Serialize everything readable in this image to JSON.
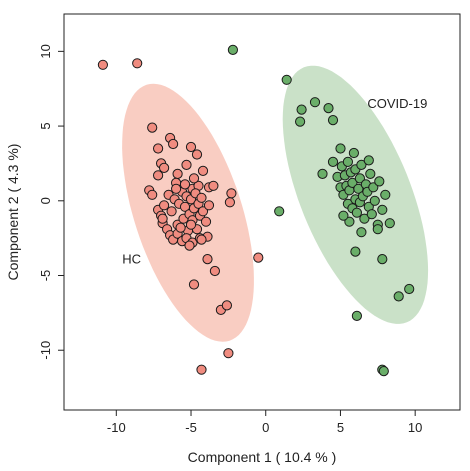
{
  "chart_data": {
    "type": "scatter",
    "title": "",
    "xlabel": "Component 1 ( 10.4 % )",
    "ylabel": "Component 2 ( 4.3 %)",
    "xlim": [
      -13.5,
      13.0
    ],
    "ylim": [
      -14.0,
      12.5
    ],
    "xticks": [
      -10,
      -5,
      0,
      5,
      10
    ],
    "yticks": [
      -10,
      -5,
      0,
      5,
      10
    ],
    "grid": false,
    "annotations": [
      {
        "text": "HC",
        "x": -9.6,
        "y": -4.2
      },
      {
        "text": "COVID-19",
        "x": 6.8,
        "y": 6.2
      }
    ],
    "ellipses": [
      {
        "group": "HC",
        "center": [
          -5.2,
          -0.8
        ],
        "semi_major": 9.0,
        "semi_minor": 3.6,
        "angle_deg": 108,
        "color": "#f4a48f"
      },
      {
        "group": "COVID-19",
        "center": [
          6.0,
          0.4
        ],
        "semi_major": 9.2,
        "semi_minor": 3.7,
        "angle_deg": 112,
        "color": "#9ec99b"
      }
    ],
    "series": [
      {
        "name": "HC",
        "color": "#f08c80",
        "points": [
          [
            -10.9,
            9.1
          ],
          [
            -8.6,
            9.2
          ],
          [
            -7.6,
            4.9
          ],
          [
            -7.8,
            0.7
          ],
          [
            -7.6,
            0.4
          ],
          [
            -7.2,
            3.5
          ],
          [
            -7.0,
            2.5
          ],
          [
            -6.8,
            2.2
          ],
          [
            -7.2,
            1.7
          ],
          [
            -6.4,
            4.2
          ],
          [
            -6.2,
            3.8
          ],
          [
            -5.9,
            1.8
          ],
          [
            -5.3,
            2.4
          ],
          [
            -5.0,
            3.6
          ],
          [
            -4.6,
            3.1
          ],
          [
            -4.2,
            2.0
          ],
          [
            -4.9,
            0.8
          ],
          [
            -4.5,
            1.0
          ],
          [
            -3.8,
            0.9
          ],
          [
            -3.5,
            1.0
          ],
          [
            -2.3,
            0.5
          ],
          [
            -2.4,
            -0.1
          ],
          [
            -7.2,
            -0.6
          ],
          [
            -7.0,
            -1.0
          ],
          [
            -6.9,
            -1.5
          ],
          [
            -6.8,
            -0.3
          ],
          [
            -6.5,
            0.4
          ],
          [
            -6.3,
            -0.7
          ],
          [
            -6.1,
            0.1
          ],
          [
            -6.0,
            1.2
          ],
          [
            -5.9,
            -1.6
          ],
          [
            -5.8,
            -0.2
          ],
          [
            -5.6,
            0.6
          ],
          [
            -5.5,
            -1.2
          ],
          [
            -5.4,
            -0.4
          ],
          [
            -5.3,
            0.3
          ],
          [
            -5.2,
            -2.0
          ],
          [
            -5.1,
            -0.9
          ],
          [
            -5.0,
            0.1
          ],
          [
            -4.9,
            -1.3
          ],
          [
            -4.8,
            -0.5
          ],
          [
            -4.7,
            0.5
          ],
          [
            -4.6,
            -1.9
          ],
          [
            -4.5,
            -0.2
          ],
          [
            -4.4,
            -1.0
          ],
          [
            -4.3,
            0.2
          ],
          [
            -4.2,
            -0.7
          ],
          [
            -4.0,
            -1.4
          ],
          [
            -3.9,
            -2.4
          ],
          [
            -3.8,
            -0.3
          ],
          [
            -6.6,
            -1.9
          ],
          [
            -6.4,
            -2.3
          ],
          [
            -6.2,
            -2.6
          ],
          [
            -5.9,
            -2.2
          ],
          [
            -5.6,
            -2.7
          ],
          [
            -5.3,
            -2.5
          ],
          [
            -4.9,
            -2.8
          ],
          [
            -4.4,
            -2.5
          ],
          [
            -4.3,
            -2.6
          ],
          [
            -5.1,
            -3.0
          ],
          [
            -3.9,
            -3.9
          ],
          [
            -3.4,
            -4.7
          ],
          [
            -4.8,
            -5.6
          ],
          [
            -3.0,
            -7.3
          ],
          [
            -2.6,
            -7.0
          ],
          [
            -2.5,
            -10.2
          ],
          [
            -4.3,
            -11.3
          ],
          [
            -0.5,
            -3.8
          ],
          [
            -6.9,
            -1.2
          ],
          [
            -6.0,
            0.8
          ],
          [
            -5.4,
            1.1
          ],
          [
            -4.8,
            1.5
          ],
          [
            -5.7,
            -1.8
          ],
          [
            -5.0,
            -1.6
          ]
        ]
      },
      {
        "name": "COVID-19",
        "color": "#6aae69",
        "points": [
          [
            -2.2,
            10.1
          ],
          [
            1.4,
            8.1
          ],
          [
            2.4,
            6.1
          ],
          [
            2.3,
            5.3
          ],
          [
            3.3,
            6.6
          ],
          [
            4.2,
            6.2
          ],
          [
            4.5,
            5.4
          ],
          [
            5.0,
            3.5
          ],
          [
            3.8,
            1.8
          ],
          [
            4.5,
            2.6
          ],
          [
            4.8,
            1.6
          ],
          [
            5.0,
            0.9
          ],
          [
            5.1,
            2.3
          ],
          [
            5.2,
            0.4
          ],
          [
            5.3,
            1.7
          ],
          [
            5.4,
            1.0
          ],
          [
            5.5,
            2.6
          ],
          [
            5.5,
            -0.2
          ],
          [
            5.6,
            0.7
          ],
          [
            5.7,
            1.9
          ],
          [
            5.8,
            1.2
          ],
          [
            5.8,
            -0.5
          ],
          [
            5.9,
            3.2
          ],
          [
            6.0,
            0.1
          ],
          [
            6.0,
            2.1
          ],
          [
            6.1,
            -0.8
          ],
          [
            6.2,
            0.8
          ],
          [
            6.3,
            1.5
          ],
          [
            6.3,
            -0.1
          ],
          [
            6.4,
            2.4
          ],
          [
            6.5,
            0.3
          ],
          [
            6.6,
            -1.2
          ],
          [
            6.7,
            1.1
          ],
          [
            6.8,
            0.6
          ],
          [
            6.9,
            -0.4
          ],
          [
            7.0,
            1.8
          ],
          [
            7.1,
            -0.9
          ],
          [
            7.2,
            0.9
          ],
          [
            7.3,
            0.0
          ],
          [
            7.5,
            -1.6
          ],
          [
            7.6,
            1.3
          ],
          [
            7.8,
            -0.6
          ],
          [
            8.0,
            0.4
          ],
          [
            5.6,
            -1.4
          ],
          [
            6.9,
            2.7
          ],
          [
            5.2,
            -1.0
          ],
          [
            7.5,
            -1.9
          ],
          [
            6.0,
            -3.4
          ],
          [
            7.8,
            -3.9
          ],
          [
            8.3,
            -1.5
          ],
          [
            8.9,
            -6.4
          ],
          [
            9.6,
            -5.9
          ],
          [
            6.1,
            -7.7
          ],
          [
            7.8,
            -11.3
          ],
          [
            7.9,
            -11.4
          ],
          [
            0.9,
            -0.7
          ],
          [
            6.4,
            -2.1
          ]
        ]
      }
    ]
  }
}
